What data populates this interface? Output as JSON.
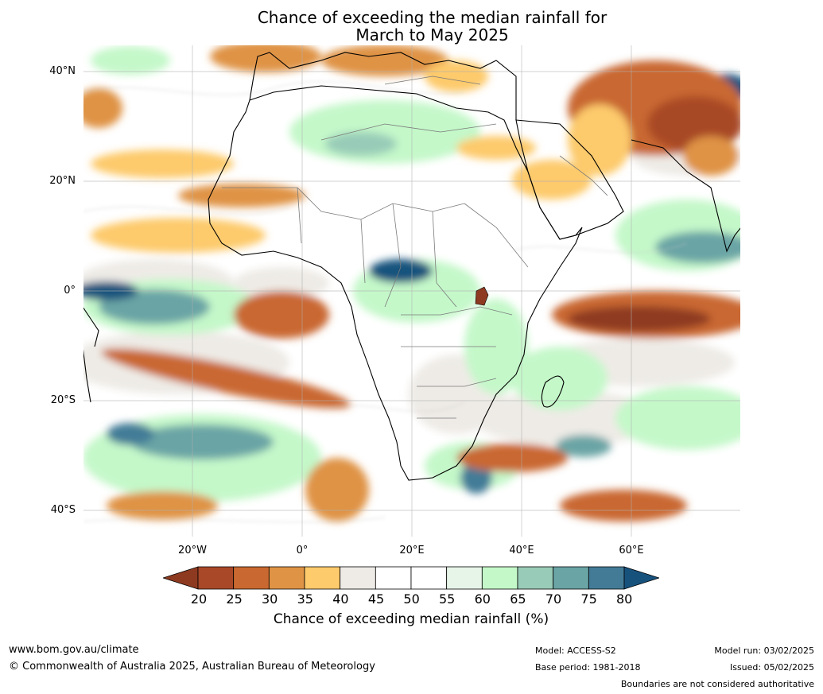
{
  "title": {
    "line1": "Chance of exceeding the median rainfall for",
    "line2": "March to May 2025"
  },
  "map": {
    "latitude_labels": [
      "40°N",
      "20°N",
      "0°",
      "20°S",
      "40°S"
    ],
    "longitude_labels": [
      "20°W",
      "0°",
      "20°E",
      "40°E",
      "60°E"
    ]
  },
  "colorbar": {
    "ticks": [
      "20",
      "25",
      "30",
      "35",
      "40",
      "45",
      "50",
      "55",
      "60",
      "65",
      "70",
      "75",
      "80"
    ],
    "colors": [
      "#8e3a20",
      "#a84828",
      "#c96830",
      "#df9345",
      "#fdca6c",
      "#eeebe6",
      "#ffffff",
      "#ffffff",
      "#e6f5e8",
      "#c4f8c9",
      "#99ccb8",
      "#6aa4a5",
      "#437b97",
      "#17527d"
    ],
    "label": "Chance of exceeding median rainfall (%)"
  },
  "footer": {
    "url": "www.bom.gov.au/climate",
    "copyright": "© Commonwealth of Australia 2025, Australian Bureau of Meteorology",
    "model": "Model: ACCESS-S2",
    "base_period": "Base period: 1981-2018",
    "model_run": "Model run: 03/02/2025",
    "issued": "Issued: 05/02/2025",
    "boundaries": "Boundaries are not considered authoritative"
  }
}
